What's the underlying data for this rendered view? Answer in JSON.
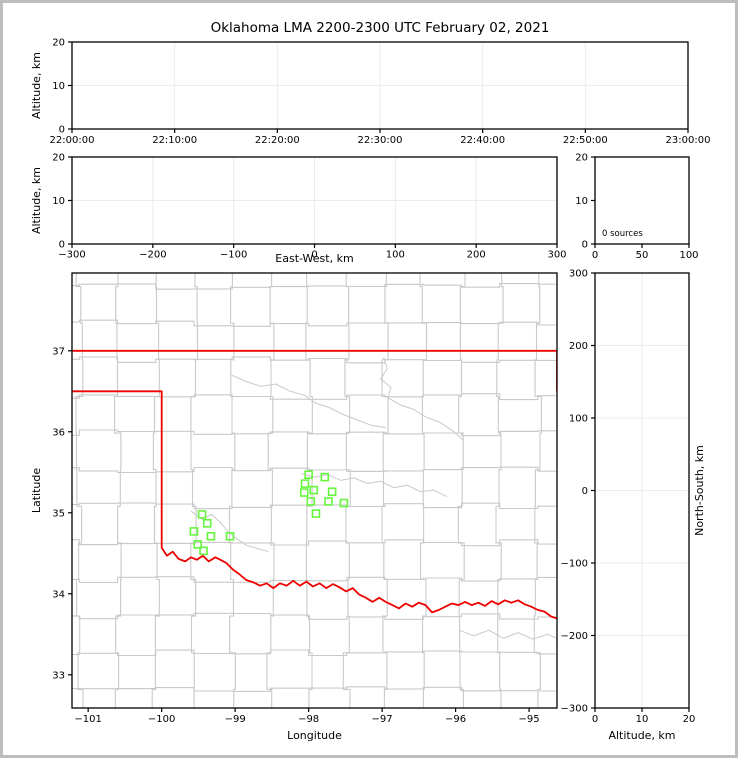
{
  "title": "Oklahoma LMA 2200-2300 UTC February 02, 2021",
  "colors": {
    "state_border": "#ee0000",
    "county_line": "#c9c9c9",
    "river_line": "#c9c9c9",
    "station_marker": "#66f73d",
    "gridline": "#ececec",
    "spine": "#000000",
    "figure_frame": "#bdbdbd",
    "background": "#ffffff"
  },
  "chart_data": [
    {
      "id": "time-height",
      "type": "scatter",
      "points": [],
      "grid": true,
      "x": {
        "label": "",
        "lim": [
          0,
          6
        ],
        "tick_values": [
          0,
          1,
          2,
          3,
          4,
          5,
          6
        ],
        "tick_labels": [
          "22:00:00",
          "22:10:00",
          "22:20:00",
          "22:30:00",
          "22:40:00",
          "22:50:00",
          "23:00:00"
        ]
      },
      "y": {
        "label": "Altitude, km",
        "lim": [
          0,
          20
        ],
        "tick_values": [
          0,
          10,
          20
        ],
        "tick_labels": [
          "0",
          "10",
          "20"
        ]
      }
    },
    {
      "id": "ew-height",
      "type": "scatter",
      "points": [],
      "grid": true,
      "x": {
        "label": "East-West, km",
        "lim": [
          -300,
          300
        ],
        "tick_values": [
          -300,
          -200,
          -100,
          0,
          100,
          200,
          300
        ],
        "tick_labels": [
          "−300",
          "−200",
          "−100",
          "0",
          "100",
          "200",
          "300"
        ]
      },
      "y": {
        "label": "Altitude, km",
        "lim": [
          0,
          20
        ],
        "tick_values": [
          0,
          10,
          20
        ],
        "tick_labels": [
          "0",
          "10",
          "20"
        ]
      }
    },
    {
      "id": "alt-histogram",
      "type": "bar",
      "values": [],
      "note": "0 sources",
      "grid": false,
      "x": {
        "label": "",
        "lim": [
          0,
          100
        ],
        "tick_values": [
          0,
          50,
          100
        ],
        "tick_labels": [
          "0",
          "50",
          "100"
        ]
      },
      "y": {
        "label": "",
        "lim": [
          0,
          20
        ],
        "tick_values": [
          0,
          10,
          20
        ],
        "tick_labels": [
          "0",
          "10",
          "20"
        ]
      }
    },
    {
      "id": "plan-map",
      "type": "map-scatter",
      "grid": false,
      "x": {
        "label": "Longitude",
        "lim": [
          -101.22,
          -94.62
        ],
        "tick_values": [
          -101,
          -100,
          -99,
          -98,
          -97,
          -96,
          -95
        ],
        "tick_labels": [
          "−101",
          "−100",
          "−99",
          "−98",
          "−97",
          "−96",
          "−95"
        ]
      },
      "y": {
        "label": "Latitude",
        "lim": [
          32.59,
          37.96
        ],
        "tick_values": [
          33,
          34,
          35,
          36,
          37
        ],
        "tick_labels": [
          "33",
          "34",
          "35",
          "36",
          "37"
        ]
      },
      "stations": [
        [
          -98.0,
          35.47
        ],
        [
          -97.78,
          35.44
        ],
        [
          -98.05,
          35.36
        ],
        [
          -97.93,
          35.28
        ],
        [
          -98.06,
          35.25
        ],
        [
          -97.68,
          35.26
        ],
        [
          -97.97,
          35.14
        ],
        [
          -97.73,
          35.14
        ],
        [
          -97.52,
          35.12
        ],
        [
          -97.9,
          34.99
        ],
        [
          -99.45,
          34.98
        ],
        [
          -99.38,
          34.87
        ],
        [
          -99.56,
          34.77
        ],
        [
          -99.33,
          34.71
        ],
        [
          -99.07,
          34.71
        ],
        [
          -99.51,
          34.61
        ],
        [
          -99.43,
          34.53
        ]
      ],
      "state_border": [
        [
          [
            -101.25,
            37.0
          ],
          [
            -94.6,
            37.0
          ]
        ],
        [
          [
            -94.62,
            37.0
          ],
          [
            -94.62,
            36.5
          ]
        ],
        [
          [
            -101.25,
            36.5
          ],
          [
            -100.0,
            36.5
          ],
          [
            -100.0,
            34.57
          ],
          [
            -99.93,
            34.47
          ],
          [
            -99.85,
            34.52
          ],
          [
            -99.77,
            34.43
          ],
          [
            -99.68,
            34.4
          ],
          [
            -99.6,
            34.45
          ],
          [
            -99.52,
            34.42
          ],
          [
            -99.44,
            34.47
          ],
          [
            -99.36,
            34.4
          ],
          [
            -99.27,
            34.45
          ],
          [
            -99.2,
            34.42
          ],
          [
            -99.12,
            34.38
          ],
          [
            -99.03,
            34.3
          ],
          [
            -98.94,
            34.24
          ],
          [
            -98.85,
            34.17
          ],
          [
            -98.75,
            34.14
          ],
          [
            -98.66,
            34.1
          ],
          [
            -98.57,
            34.13
          ],
          [
            -98.48,
            34.07
          ],
          [
            -98.39,
            34.13
          ],
          [
            -98.3,
            34.1
          ],
          [
            -98.21,
            34.16
          ],
          [
            -98.12,
            34.1
          ],
          [
            -98.03,
            34.15
          ],
          [
            -97.94,
            34.09
          ],
          [
            -97.85,
            34.13
          ],
          [
            -97.76,
            34.07
          ],
          [
            -97.67,
            34.12
          ],
          [
            -97.58,
            34.08
          ],
          [
            -97.49,
            34.03
          ],
          [
            -97.4,
            34.07
          ],
          [
            -97.31,
            33.99
          ],
          [
            -97.22,
            33.95
          ],
          [
            -97.13,
            33.9
          ],
          [
            -97.04,
            33.95
          ],
          [
            -96.95,
            33.9
          ],
          [
            -96.86,
            33.86
          ],
          [
            -96.77,
            33.82
          ],
          [
            -96.68,
            33.88
          ],
          [
            -96.59,
            33.84
          ],
          [
            -96.5,
            33.89
          ],
          [
            -96.41,
            33.86
          ],
          [
            -96.32,
            33.77
          ],
          [
            -96.23,
            33.8
          ],
          [
            -96.14,
            33.84
          ],
          [
            -96.05,
            33.88
          ],
          [
            -95.96,
            33.86
          ],
          [
            -95.87,
            33.9
          ],
          [
            -95.78,
            33.86
          ],
          [
            -95.69,
            33.89
          ],
          [
            -95.6,
            33.85
          ],
          [
            -95.51,
            33.91
          ],
          [
            -95.42,
            33.87
          ],
          [
            -95.33,
            33.92
          ],
          [
            -95.24,
            33.89
          ],
          [
            -95.15,
            33.92
          ],
          [
            -95.06,
            33.87
          ],
          [
            -94.97,
            33.84
          ],
          [
            -94.88,
            33.8
          ],
          [
            -94.79,
            33.78
          ],
          [
            -94.7,
            33.72
          ],
          [
            -94.6,
            33.69
          ]
        ]
      ],
      "rivers": [
        [
          [
            -99.05,
            36.7
          ],
          [
            -98.85,
            36.62
          ],
          [
            -98.65,
            36.56
          ],
          [
            -98.45,
            36.59
          ],
          [
            -98.25,
            36.5
          ],
          [
            -98.05,
            36.45
          ],
          [
            -97.9,
            36.35
          ],
          [
            -97.72,
            36.3
          ],
          [
            -97.55,
            36.22
          ],
          [
            -97.35,
            36.15
          ],
          [
            -97.15,
            36.08
          ],
          [
            -96.95,
            36.05
          ]
        ],
        [
          [
            -96.98,
            36.92
          ],
          [
            -96.93,
            36.78
          ],
          [
            -97.02,
            36.65
          ],
          [
            -96.88,
            36.55
          ],
          [
            -96.92,
            36.42
          ],
          [
            -96.75,
            36.33
          ],
          [
            -96.58,
            36.28
          ],
          [
            -96.4,
            36.18
          ],
          [
            -96.22,
            36.12
          ],
          [
            -96.05,
            36.02
          ],
          [
            -95.9,
            35.9
          ]
        ],
        [
          [
            -98.1,
            35.48
          ],
          [
            -97.92,
            35.44
          ],
          [
            -97.74,
            35.47
          ],
          [
            -97.56,
            35.4
          ],
          [
            -97.38,
            35.43
          ],
          [
            -97.2,
            35.36
          ],
          [
            -97.02,
            35.39
          ],
          [
            -96.84,
            35.31
          ],
          [
            -96.66,
            35.34
          ],
          [
            -96.48,
            35.26
          ],
          [
            -96.3,
            35.28
          ],
          [
            -96.12,
            35.2
          ]
        ],
        [
          [
            -99.6,
            35.02
          ],
          [
            -99.45,
            34.92
          ],
          [
            -99.32,
            34.98
          ],
          [
            -99.2,
            34.88
          ],
          [
            -99.1,
            34.77
          ],
          [
            -98.98,
            34.68
          ],
          [
            -98.85,
            34.6
          ],
          [
            -98.7,
            34.56
          ],
          [
            -98.55,
            34.52
          ]
        ],
        [
          [
            -95.95,
            33.55
          ],
          [
            -95.75,
            33.48
          ],
          [
            -95.55,
            33.55
          ],
          [
            -95.35,
            33.45
          ],
          [
            -95.15,
            33.52
          ],
          [
            -94.95,
            33.44
          ],
          [
            -94.75,
            33.5
          ],
          [
            -94.62,
            33.45
          ]
        ]
      ],
      "county_grid": {
        "lon_start": -101.12,
        "lon_step": 0.52,
        "lon_count": 13,
        "lat_start": 32.82,
        "lat_step": 0.452,
        "lat_count": 12,
        "jitter": 0.05
      }
    },
    {
      "id": "ns-height",
      "type": "scatter",
      "points": [],
      "grid": true,
      "x": {
        "label": "Altitude, km",
        "lim": [
          0,
          20
        ],
        "tick_values": [
          0,
          10,
          20
        ],
        "tick_labels": [
          "0",
          "10",
          "20"
        ]
      },
      "y": {
        "label": "North-South, km",
        "lim": [
          -300,
          300
        ],
        "tick_values": [
          -300,
          -200,
          -100,
          0,
          100,
          200,
          300
        ],
        "tick_labels": [
          "−300",
          "−200",
          "−100",
          "0",
          "100",
          "200",
          "300"
        ]
      }
    }
  ]
}
